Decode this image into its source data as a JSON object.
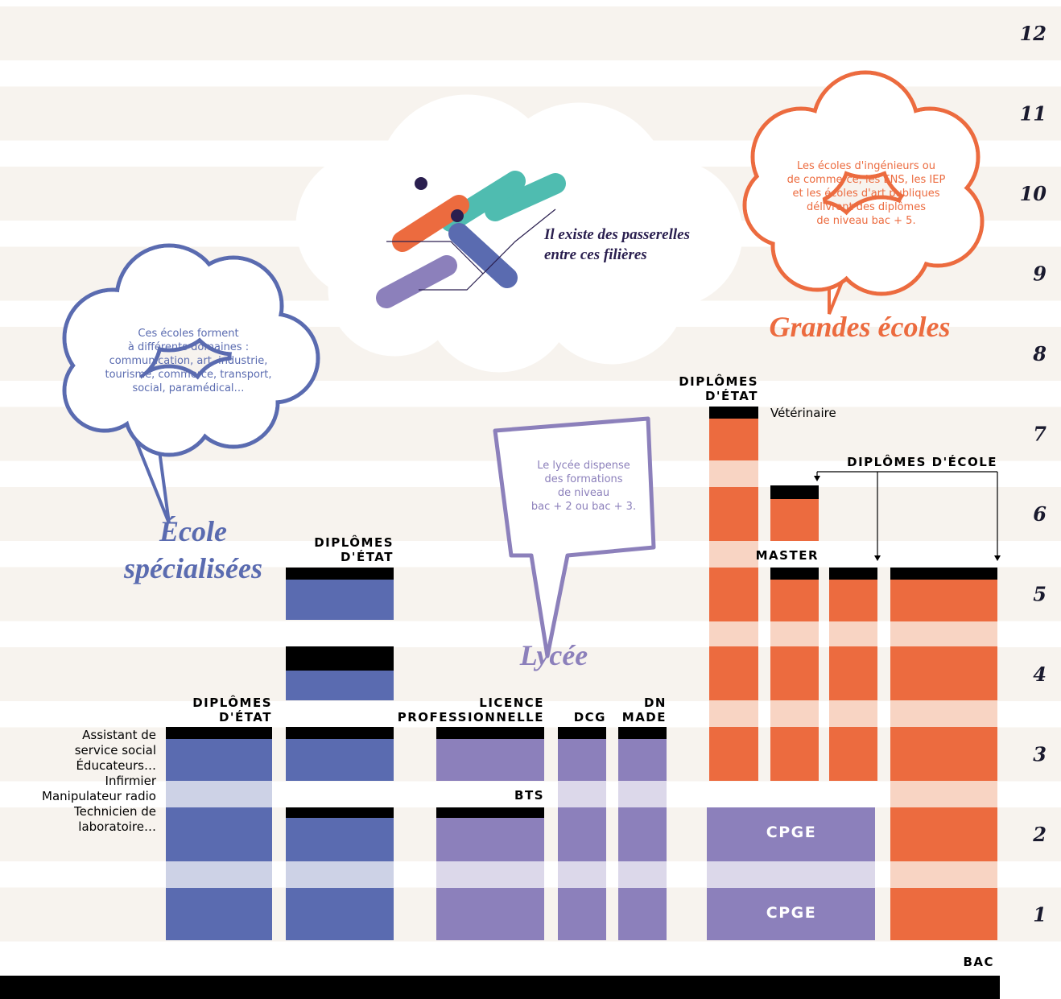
{
  "levels": [
    12,
    11,
    10,
    9,
    8,
    7,
    6,
    5,
    4,
    3,
    2,
    1
  ],
  "passerelles": {
    "lines": [
      "Il existe des passerelles",
      "entre ces filières"
    ]
  },
  "grandes_ecoles": {
    "title": "Grandes écoles",
    "text": [
      "Les écoles d'ingénieurs ou",
      "de commerce, les ENS, les IEP",
      "et les écoles d'art publiques",
      "délivrent des diplômes",
      "de niveau bac + 5."
    ]
  },
  "ecoles_specialisees": {
    "title": [
      "École",
      "spécialisées"
    ],
    "text": [
      "Ces écoles forment",
      "à différents domaines :",
      "communication, art, industrie,",
      "tourisme, commerce, transport,",
      "social, paramédical…"
    ]
  },
  "lycee": {
    "title": "Lycée",
    "text": [
      "Le lycée dispense",
      "des formations",
      "de niveau",
      "bac + 2 ou bac + 3."
    ]
  },
  "side_list": [
    "Assistant de",
    "service social",
    "Éducateurs…",
    "Infirmier",
    "Manipulateur radio",
    "Technicien de",
    "laboratoire…"
  ],
  "labels": {
    "de_left": [
      "DIPLÔMES",
      "D'ÉTAT"
    ],
    "de_mid": [
      "DIPLÔMES",
      "D'ÉTAT"
    ],
    "licence_pro": [
      "LICENCE",
      "PROFESSIONNELLE"
    ],
    "dcg": "DCG",
    "dn_made": [
      "DN",
      "MADE"
    ],
    "bts": "BTS",
    "cpge": [
      "CPGE",
      "CPGE"
    ],
    "de_right": [
      "DIPLÔMES",
      "D'ÉTAT"
    ],
    "veterinaire": "Vétérinaire",
    "diplomes_ecole": "DIPLÔMES D'ÉCOLE",
    "master": "MASTER",
    "bac": "BAC"
  }
}
